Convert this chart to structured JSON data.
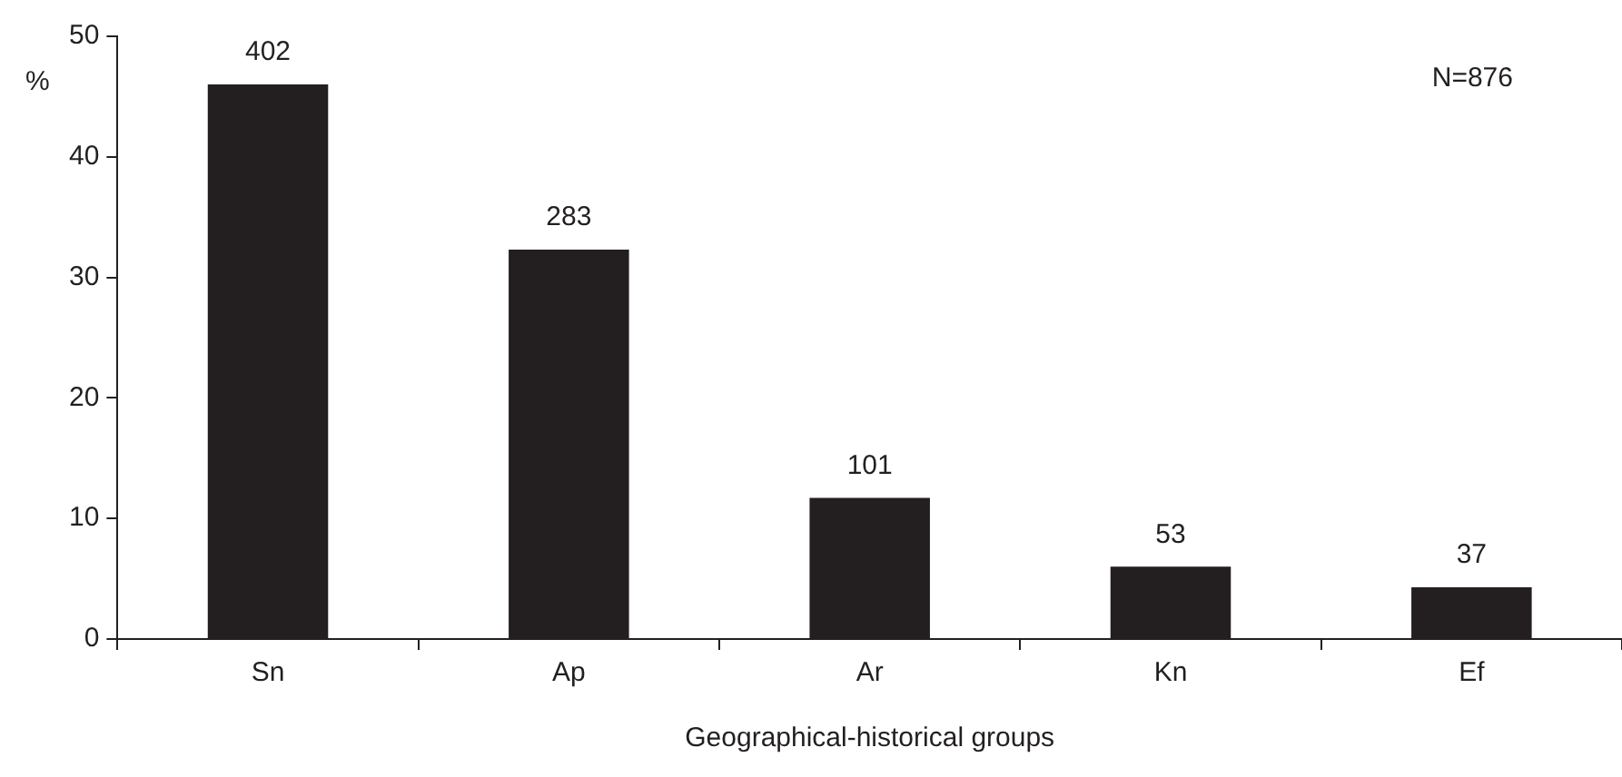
{
  "chart_data": {
    "type": "bar",
    "xlabel": "Geographical-historical groups",
    "ylabel": "%",
    "categories": [
      "Sn",
      "Ap",
      "Ar",
      "Kn",
      "Ef"
    ],
    "values": [
      46,
      32.3,
      11.7,
      6,
      4.3
    ],
    "color": "#231f20",
    "ylim": [
      0,
      50
    ],
    "yticks": [
      0,
      10,
      20,
      30,
      40,
      50
    ],
    "grid": false,
    "legend": false,
    "annotations": [
      "N=876",
      {
        "text": "402",
        "x": "Sn",
        "y": 46
      },
      {
        "text": "283",
        "x": "Ap",
        "y": 32.3
      },
      {
        "text": "101",
        "x": "Ar",
        "y": 11.7
      },
      {
        "text": "53",
        "x": "Kn",
        "y": 6
      },
      {
        "text": "37",
        "x": "Ef",
        "y": 4.3
      }
    ]
  }
}
